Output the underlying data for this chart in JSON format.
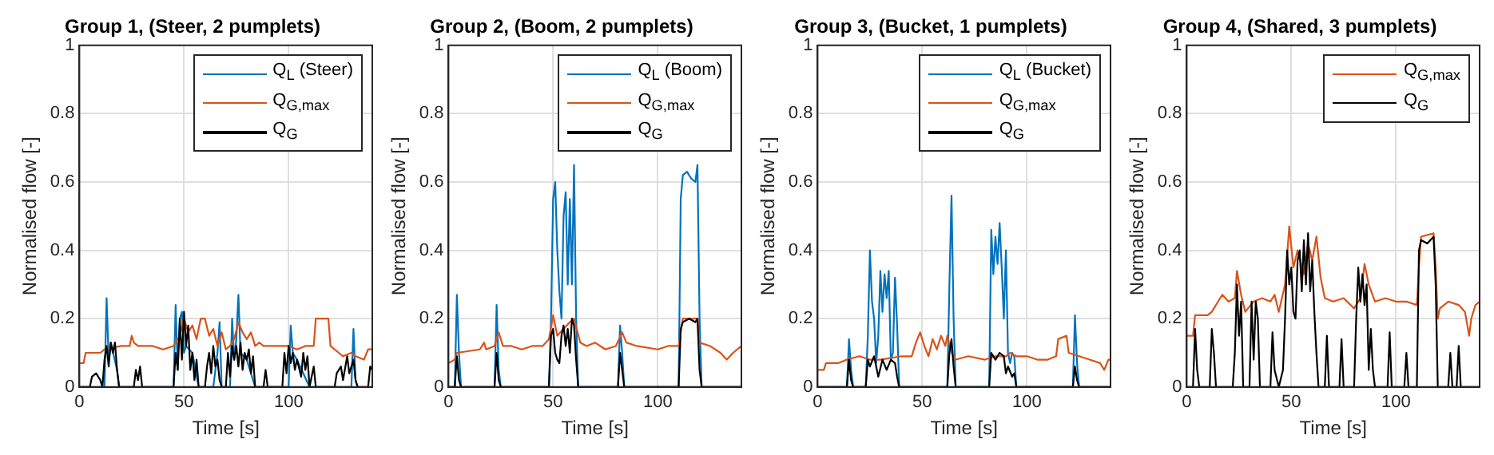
{
  "chart_data": [
    {
      "type": "line",
      "title": "Group 1, (Steer, 2 pumplets)",
      "xlabel": "Time [s]",
      "ylabel": "Normalised flow [-]",
      "xlim": [
        0,
        140
      ],
      "xticks": [
        0,
        50,
        100
      ],
      "ylim": [
        0,
        1
      ],
      "yticks": [
        0,
        0.2,
        0.4,
        0.6,
        0.8,
        1
      ],
      "grid": true,
      "legend": "top right",
      "marker": "none",
      "series": [
        {
          "name": "Q$_{L}$ (Steer)",
          "color": "#0072bd",
          "x": [
            0,
            12,
            13,
            14,
            15,
            18,
            19,
            45,
            46,
            47,
            48,
            49,
            50,
            51,
            54,
            57,
            64,
            66,
            67,
            68,
            72,
            73,
            74,
            75,
            76,
            77,
            80,
            84,
            100,
            101,
            102,
            104,
            110,
            130,
            131,
            132,
            133
          ],
          "values": [
            0,
            0,
            0.26,
            0.08,
            0.13,
            0.05,
            0,
            0,
            0.24,
            0.05,
            0.2,
            0.22,
            0.1,
            0.12,
            0.1,
            0,
            0,
            0.1,
            0.19,
            0,
            0,
            0.2,
            0.08,
            0.14,
            0.27,
            0.1,
            0.08,
            0,
            0,
            0.18,
            0.1,
            0.08,
            0,
            0,
            0.17,
            0.02,
            0
          ]
        },
        {
          "name": "Q$_{G,max}$",
          "color": "#d95319",
          "x": [
            0,
            2,
            3,
            10,
            12,
            20,
            24,
            25,
            26,
            28,
            35,
            40,
            45,
            48,
            50,
            52,
            54,
            56,
            58,
            60,
            62,
            64,
            66,
            68,
            70,
            72,
            74,
            76,
            78,
            80,
            82,
            84,
            86,
            88,
            95,
            100,
            104,
            108,
            112,
            113,
            119,
            120,
            124,
            126,
            130,
            132,
            136,
            138,
            140
          ],
          "values": [
            0.07,
            0.07,
            0.1,
            0.1,
            0.11,
            0.12,
            0.12,
            0.15,
            0.13,
            0.12,
            0.12,
            0.11,
            0.12,
            0.15,
            0.2,
            0.16,
            0.18,
            0.14,
            0.2,
            0.2,
            0.15,
            0.17,
            0.12,
            0.16,
            0.11,
            0.12,
            0.14,
            0.19,
            0.16,
            0.14,
            0.16,
            0.12,
            0.13,
            0.12,
            0.12,
            0.12,
            0.11,
            0.12,
            0.12,
            0.2,
            0.2,
            0.12,
            0.1,
            0.09,
            0.1,
            0.09,
            0.08,
            0.11,
            0.11
          ]
        },
        {
          "name": "Q$_{G}$",
          "color": "#000000",
          "x": [
            0,
            5,
            6,
            8,
            10,
            11,
            12,
            13,
            14,
            15,
            16,
            17,
            18,
            19,
            26,
            27,
            28,
            29,
            30,
            45,
            46,
            47,
            48,
            49,
            50,
            51,
            52,
            53,
            54,
            55,
            56,
            57,
            60,
            61,
            62,
            63,
            64,
            65,
            66,
            67,
            68,
            70,
            71,
            72,
            73,
            74,
            75,
            76,
            77,
            78,
            79,
            80,
            81,
            82,
            83,
            84,
            88,
            89,
            90,
            97,
            98,
            99,
            100,
            101,
            102,
            103,
            104,
            106,
            107,
            108,
            109,
            110,
            112,
            113,
            122,
            123,
            125,
            126,
            128,
            129,
            131,
            132,
            133,
            138,
            139,
            140
          ],
          "values": [
            0,
            0,
            0.03,
            0.04,
            0.02,
            0,
            0.08,
            0.12,
            0.06,
            0.13,
            0.1,
            0.13,
            0.05,
            0,
            0,
            0.05,
            0.02,
            0.06,
            0,
            0,
            0.1,
            0.05,
            0.2,
            0.08,
            0.22,
            0.12,
            0.18,
            0.05,
            0.1,
            0.02,
            0.08,
            0,
            0,
            0.06,
            0.1,
            0.04,
            0.12,
            0.06,
            0.08,
            0.02,
            0,
            0,
            0.1,
            0.03,
            0.12,
            0.08,
            0.12,
            0.06,
            0.13,
            0.05,
            0.1,
            0.08,
            0.11,
            0.04,
            0.09,
            0,
            0,
            0.05,
            0,
            0,
            0.1,
            0.04,
            0.12,
            0.07,
            0.1,
            0.05,
            0.08,
            0.03,
            0.1,
            0.05,
            0.09,
            0,
            0.06,
            0,
            0,
            0.04,
            0.06,
            0.02,
            0.09,
            0.04,
            0.08,
            0.02,
            0,
            0,
            0.06,
            0.05
          ]
        }
      ]
    },
    {
      "type": "line",
      "title": "Group 2, (Boom, 2 pumplets)",
      "xlabel": "Time [s]",
      "ylabel": "Normalised flow [-]",
      "xlim": [
        0,
        140
      ],
      "xticks": [
        0,
        50,
        100
      ],
      "ylim": [
        0,
        1
      ],
      "yticks": [
        0,
        0.2,
        0.4,
        0.6,
        0.8,
        1
      ],
      "grid": true,
      "legend": "top right",
      "marker": "none",
      "series": [
        {
          "name": "Q$_{L}$ (Boom)",
          "color": "#0072bd",
          "x": [
            0,
            3,
            4,
            5,
            6,
            22,
            23,
            24,
            25,
            48,
            49,
            50,
            51,
            52,
            53,
            54,
            55,
            56,
            57,
            58,
            59,
            60,
            61,
            62,
            81,
            82,
            83,
            84,
            110,
            111,
            112,
            114,
            116,
            118,
            119,
            120,
            121,
            140
          ],
          "values": [
            0,
            0,
            0.27,
            0.1,
            0,
            0,
            0.24,
            0.05,
            0,
            0,
            0.2,
            0.55,
            0.6,
            0.4,
            0.28,
            0.2,
            0.5,
            0.57,
            0.3,
            0.55,
            0.3,
            0.65,
            0.2,
            0,
            0,
            0.18,
            0.1,
            0,
            0,
            0.55,
            0.62,
            0.63,
            0.61,
            0.6,
            0.65,
            0.2,
            0,
            0
          ]
        },
        {
          "name": "Q$_{G,max}$",
          "color": "#d95319",
          "x": [
            0,
            3,
            4,
            15,
            17,
            18,
            22,
            24,
            26,
            30,
            35,
            40,
            45,
            48,
            50,
            52,
            55,
            58,
            60,
            63,
            66,
            70,
            75,
            80,
            83,
            85,
            90,
            100,
            105,
            110,
            112,
            119,
            120,
            125,
            130,
            133,
            136,
            140
          ],
          "values": [
            0.07,
            0.08,
            0.1,
            0.11,
            0.13,
            0.11,
            0.12,
            0.16,
            0.12,
            0.12,
            0.11,
            0.12,
            0.12,
            0.14,
            0.21,
            0.15,
            0.17,
            0.19,
            0.2,
            0.13,
            0.12,
            0.13,
            0.11,
            0.12,
            0.16,
            0.13,
            0.12,
            0.11,
            0.12,
            0.12,
            0.2,
            0.2,
            0.13,
            0.12,
            0.1,
            0.08,
            0.1,
            0.12
          ]
        },
        {
          "name": "Q$_{G}$",
          "color": "#000000",
          "x": [
            0,
            3,
            4,
            5,
            6,
            22,
            23,
            24,
            25,
            48,
            49,
            50,
            51,
            52,
            53,
            54,
            55,
            56,
            57,
            58,
            59,
            60,
            61,
            62,
            81,
            82,
            83,
            84,
            110,
            111,
            112,
            115,
            118,
            119,
            120,
            121,
            140
          ],
          "values": [
            0,
            0,
            0.09,
            0.02,
            0,
            0,
            0.1,
            0.02,
            0,
            0,
            0.15,
            0.17,
            0.1,
            0.08,
            0.07,
            0.15,
            0.18,
            0.12,
            0.17,
            0.1,
            0.2,
            0.18,
            0.08,
            0,
            0,
            0.1,
            0.05,
            0,
            0,
            0.17,
            0.19,
            0.2,
            0.19,
            0.2,
            0.05,
            0,
            0
          ]
        }
      ]
    },
    {
      "type": "line",
      "title": "Group 3, (Bucket, 1 pumplets)",
      "xlabel": "Time [s]",
      "ylabel": "Normalised flow [-]",
      "xlim": [
        0,
        140
      ],
      "xticks": [
        0,
        50,
        100
      ],
      "ylim": [
        0,
        1
      ],
      "yticks": [
        0,
        0.2,
        0.4,
        0.6,
        0.8,
        1
      ],
      "grid": true,
      "legend": "top right",
      "marker": "none",
      "series": [
        {
          "name": "Q$_{L}$ (Bucket)",
          "color": "#0072bd",
          "x": [
            0,
            14,
            15,
            16,
            17,
            23,
            24,
            25,
            26,
            27,
            28,
            29,
            30,
            31,
            32,
            33,
            34,
            35,
            36,
            37,
            38,
            39,
            62,
            63,
            64,
            65,
            66,
            82,
            83,
            84,
            85,
            86,
            87,
            88,
            89,
            90,
            91,
            92,
            93,
            94,
            95,
            122,
            123,
            124,
            125,
            140
          ],
          "values": [
            0,
            0,
            0.14,
            0.05,
            0,
            0,
            0.15,
            0.4,
            0.25,
            0.2,
            0.07,
            0.15,
            0.34,
            0.22,
            0.33,
            0.26,
            0.34,
            0.08,
            0.1,
            0.32,
            0.18,
            0,
            0,
            0.3,
            0.56,
            0.2,
            0,
            0,
            0.46,
            0.33,
            0.44,
            0.36,
            0.48,
            0.35,
            0.2,
            0.4,
            0.1,
            0.07,
            0.1,
            0.09,
            0,
            0,
            0.21,
            0.07,
            0,
            0
          ]
        },
        {
          "name": "Q$_{G,max}$",
          "color": "#d95319",
          "x": [
            0,
            3,
            4,
            10,
            14,
            20,
            25,
            30,
            40,
            45,
            47,
            49,
            51,
            53,
            55,
            57,
            59,
            61,
            62,
            64,
            66,
            72,
            80,
            85,
            90,
            92,
            95,
            100,
            105,
            110,
            114,
            115,
            119,
            120,
            125,
            130,
            135,
            137,
            139,
            140
          ],
          "values": [
            0.05,
            0.05,
            0.07,
            0.07,
            0.08,
            0.09,
            0.08,
            0.08,
            0.09,
            0.09,
            0.13,
            0.16,
            0.12,
            0.09,
            0.14,
            0.11,
            0.15,
            0.12,
            0.15,
            0.1,
            0.08,
            0.09,
            0.08,
            0.09,
            0.09,
            0.1,
            0.09,
            0.09,
            0.08,
            0.08,
            0.09,
            0.14,
            0.15,
            0.1,
            0.09,
            0.08,
            0.07,
            0.05,
            0.08,
            0.08
          ]
        },
        {
          "name": "Q$_{G}$",
          "color": "#000000",
          "x": [
            0,
            14,
            15,
            16,
            17,
            23,
            24,
            25,
            27,
            29,
            31,
            33,
            35,
            37,
            38,
            39,
            62,
            63,
            64,
            65,
            66,
            82,
            83,
            85,
            87,
            89,
            90,
            91,
            93,
            94,
            95,
            122,
            123,
            124,
            125,
            140
          ],
          "values": [
            0,
            0,
            0.08,
            0.02,
            0,
            0,
            0.08,
            0.06,
            0.09,
            0.03,
            0.08,
            0.05,
            0.08,
            0.07,
            0.03,
            0,
            0,
            0.1,
            0.14,
            0.06,
            0,
            0,
            0.1,
            0.08,
            0.1,
            0.09,
            0.04,
            0.06,
            0.03,
            0.04,
            0,
            0,
            0.06,
            0.02,
            0,
            0
          ]
        }
      ]
    },
    {
      "type": "line",
      "title": "Group 4, (Shared, 3 pumplets)",
      "xlabel": "Time [s]",
      "ylabel": "Normalised flow [-]",
      "xlim": [
        0,
        140
      ],
      "xticks": [
        0,
        50,
        100
      ],
      "ylim": [
        0,
        1
      ],
      "yticks": [
        0,
        0.2,
        0.4,
        0.6,
        0.8,
        1
      ],
      "grid": true,
      "legend": "top right",
      "marker": "none",
      "series": [
        {
          "name": "Q$_{G,max}$",
          "color": "#d95319",
          "x": [
            0,
            3,
            4,
            10,
            12,
            15,
            17,
            20,
            23,
            24,
            26,
            28,
            32,
            36,
            40,
            42,
            44,
            47,
            49,
            51,
            53,
            56,
            58,
            60,
            62,
            64,
            66,
            70,
            75,
            80,
            83,
            85,
            87,
            90,
            95,
            100,
            105,
            110,
            111,
            112,
            118,
            119,
            120,
            121,
            125,
            130,
            133,
            135,
            136,
            138,
            140
          ],
          "values": [
            0.15,
            0.15,
            0.21,
            0.21,
            0.22,
            0.25,
            0.27,
            0.25,
            0.26,
            0.34,
            0.27,
            0.22,
            0.25,
            0.26,
            0.25,
            0.27,
            0.22,
            0.3,
            0.47,
            0.35,
            0.4,
            0.33,
            0.42,
            0.37,
            0.44,
            0.32,
            0.26,
            0.25,
            0.26,
            0.23,
            0.26,
            0.36,
            0.3,
            0.25,
            0.26,
            0.25,
            0.25,
            0.24,
            0.35,
            0.44,
            0.45,
            0.35,
            0.2,
            0.23,
            0.25,
            0.24,
            0.22,
            0.15,
            0.2,
            0.24,
            0.25
          ]
        },
        {
          "name": "Q$_{G}$",
          "color": "#000000",
          "x": [
            0,
            3,
            4,
            5,
            6,
            11,
            12,
            13,
            14,
            22,
            23,
            24,
            25,
            26,
            27,
            30,
            31,
            32,
            33,
            34,
            35,
            40,
            41,
            42,
            44,
            46,
            47,
            48,
            49,
            50,
            51,
            52,
            53,
            54,
            55,
            56,
            57,
            58,
            59,
            60,
            61,
            62,
            63,
            66,
            67,
            68,
            73,
            74,
            75,
            80,
            81,
            82,
            83,
            84,
            85,
            86,
            87,
            88,
            89,
            90,
            96,
            97,
            98,
            104,
            105,
            106,
            110,
            111,
            112,
            115,
            118,
            119,
            120,
            125,
            126,
            127,
            129,
            130,
            131,
            140
          ],
          "values": [
            0,
            0,
            0.17,
            0.05,
            0,
            0,
            0.17,
            0.1,
            0,
            0,
            0.1,
            0.3,
            0.15,
            0.25,
            0,
            0,
            0.25,
            0.08,
            0.25,
            0.2,
            0,
            0,
            0.16,
            0.05,
            0,
            0.05,
            0.2,
            0.4,
            0.3,
            0.35,
            0.22,
            0.2,
            0.37,
            0.4,
            0.28,
            0.43,
            0.3,
            0.45,
            0.28,
            0.37,
            0.22,
            0.1,
            0,
            0,
            0.15,
            0,
            0,
            0.14,
            0,
            0,
            0.2,
            0.35,
            0.25,
            0.33,
            0.24,
            0.3,
            0.05,
            0.17,
            0.05,
            0,
            0,
            0.16,
            0,
            0,
            0.1,
            0,
            0,
            0.4,
            0.43,
            0.42,
            0.44,
            0.3,
            0,
            0,
            0.1,
            0,
            0,
            0.12,
            0,
            0
          ]
        }
      ]
    }
  ]
}
